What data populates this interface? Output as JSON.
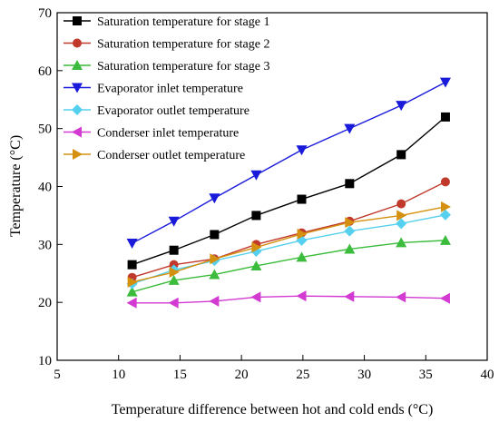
{
  "chart_data": {
    "type": "line",
    "title": "",
    "xlabel": "Temperature difference between hot and cold ends (°C)",
    "ylabel": "Temperature (°C)",
    "xlim": [
      5,
      40
    ],
    "ylim": [
      10,
      70
    ],
    "xticks": [
      5,
      10,
      15,
      20,
      25,
      30,
      35,
      40
    ],
    "yticks": [
      10,
      20,
      30,
      40,
      50,
      60,
      70
    ],
    "grid": false,
    "legend_position": "top-left",
    "x": [
      11.1,
      14.5,
      17.8,
      21.2,
      24.9,
      28.8,
      33,
      36.6
    ],
    "series": [
      {
        "name": "Saturation temperature for stage 1",
        "color": "#000000",
        "marker": "square",
        "values": [
          26.5,
          29,
          31.7,
          35,
          37.8,
          40.5,
          45.5,
          52
        ]
      },
      {
        "name": "Saturation temperature for stage 2",
        "color": "#c0392b",
        "marker": "circle",
        "values": [
          24.3,
          26.5,
          27.5,
          30,
          32,
          34,
          37,
          40.8
        ]
      },
      {
        "name": "Saturation temperature for stage 3",
        "color": "#3cbc3c",
        "marker": "triangle-up",
        "values": [
          21.8,
          23.8,
          24.8,
          26.3,
          27.8,
          29.2,
          30.3,
          30.7
        ]
      },
      {
        "name": "Evaporator inlet temperature",
        "color": "#1a1adb",
        "marker": "triangle-down",
        "values": [
          30.2,
          34,
          38,
          42,
          46.3,
          50,
          54,
          58
        ]
      },
      {
        "name": "Evaporator outlet temperature",
        "color": "#55d0ee",
        "marker": "diamond",
        "values": [
          23.2,
          25.6,
          27.2,
          28.8,
          30.7,
          32.3,
          33.6,
          35.1
        ]
      },
      {
        "name": "Conderser inlet temperature",
        "color": "#d23ad2",
        "marker": "triangle-left",
        "values": [
          19.9,
          19.9,
          20.2,
          20.9,
          21.1,
          21,
          20.9,
          20.7
        ]
      },
      {
        "name": "Conderser outlet temperature",
        "color": "#d4900e",
        "marker": "triangle-right",
        "values": [
          23.5,
          25.2,
          27.5,
          29.5,
          31.8,
          33.8,
          35,
          36.5
        ]
      }
    ]
  }
}
